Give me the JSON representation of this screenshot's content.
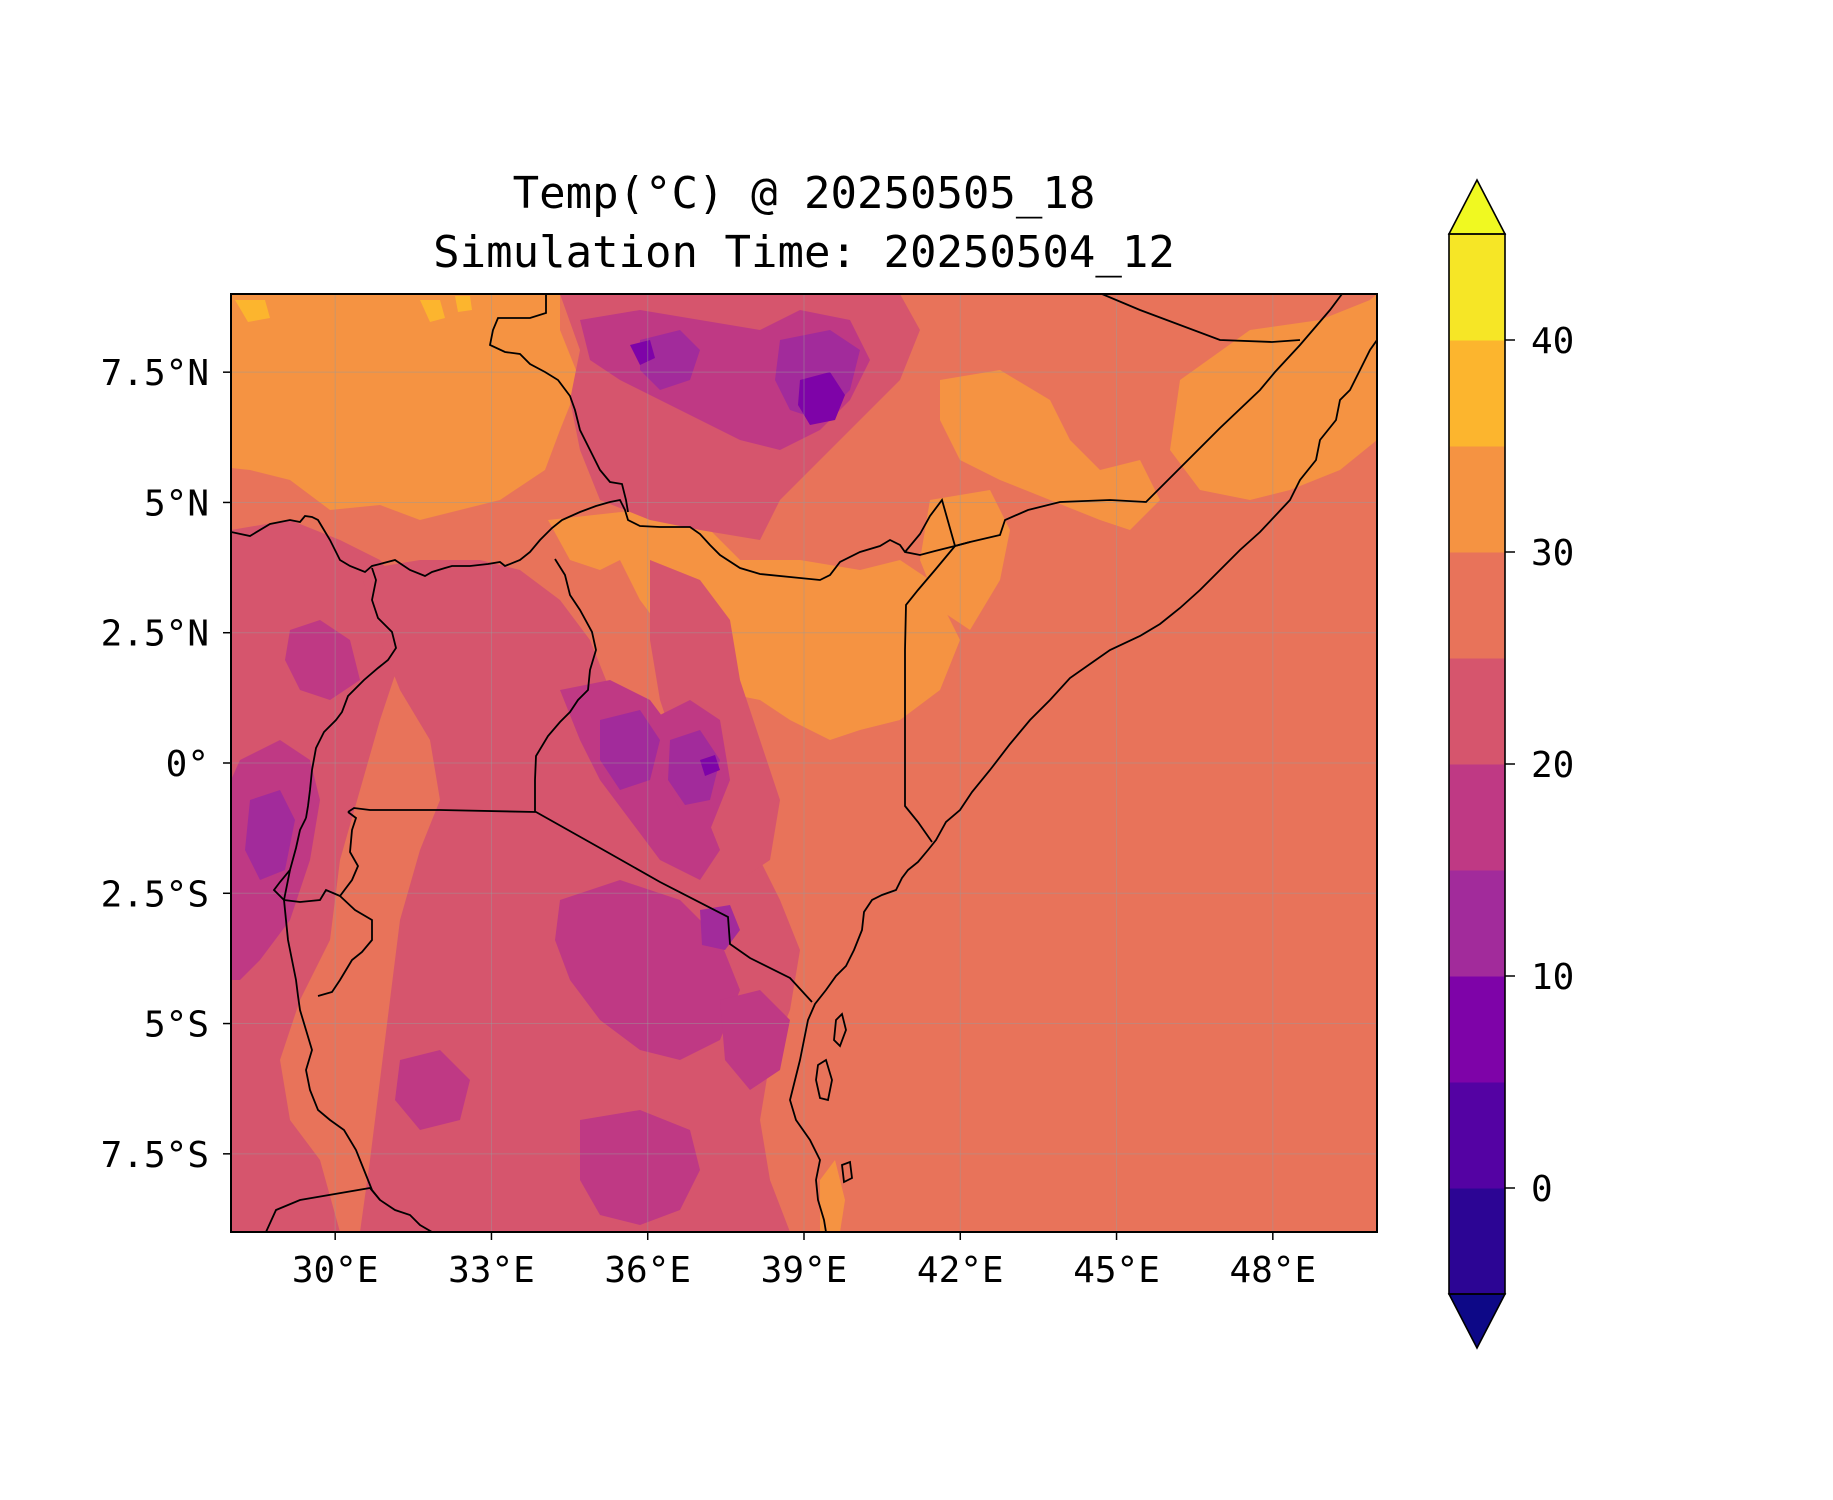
{
  "title_line1": "Temp(°C) @ 20250505_18",
  "title_line2": "Simulation Time: 20250504_12",
  "map": {
    "lon_range": [
      28.0,
      50.0
    ],
    "lat_range": [
      -9.0,
      9.0
    ],
    "xticks": [
      {
        "value": 30,
        "label": "30°E"
      },
      {
        "value": 33,
        "label": "33°E"
      },
      {
        "value": 36,
        "label": "36°E"
      },
      {
        "value": 39,
        "label": "39°E"
      },
      {
        "value": 42,
        "label": "42°E"
      },
      {
        "value": 45,
        "label": "45°E"
      },
      {
        "value": 48,
        "label": "48°E"
      }
    ],
    "yticks": [
      {
        "value": 7.5,
        "label": "7.5°N"
      },
      {
        "value": 5,
        "label": "5°N"
      },
      {
        "value": 2.5,
        "label": "2.5°N"
      },
      {
        "value": 0,
        "label": "0°"
      },
      {
        "value": -2.5,
        "label": "2.5°S"
      },
      {
        "value": -5,
        "label": "5°S"
      },
      {
        "value": -7.5,
        "label": "7.5°S"
      }
    ],
    "gridlines": true
  },
  "colorbar": {
    "min": -5,
    "max": 45,
    "extend": "both",
    "ticks": [
      {
        "value": 0,
        "label": "0"
      },
      {
        "value": 10,
        "label": "10"
      },
      {
        "value": 20,
        "label": "20"
      },
      {
        "value": 30,
        "label": "30"
      },
      {
        "value": 40,
        "label": "40"
      }
    ],
    "under_color": "#0d0887",
    "over_color": "#f0f921",
    "levels": [
      {
        "from": -5,
        "to": 0,
        "color": "#2c0594"
      },
      {
        "from": 0,
        "to": 5,
        "color": "#5402a3"
      },
      {
        "from": 5,
        "to": 10,
        "color": "#7e03a8"
      },
      {
        "from": 10,
        "to": 15,
        "color": "#a22b9b"
      },
      {
        "from": 15,
        "to": 20,
        "color": "#bf3984"
      },
      {
        "from": 20,
        "to": 25,
        "color": "#d6556d"
      },
      {
        "from": 25,
        "to": 30,
        "color": "#e8735a"
      },
      {
        "from": 30,
        "to": 35,
        "color": "#f59342"
      },
      {
        "from": 35,
        "to": 40,
        "color": "#fcb52e"
      },
      {
        "from": 40,
        "to": 45,
        "color": "#f6e626"
      }
    ]
  }
}
